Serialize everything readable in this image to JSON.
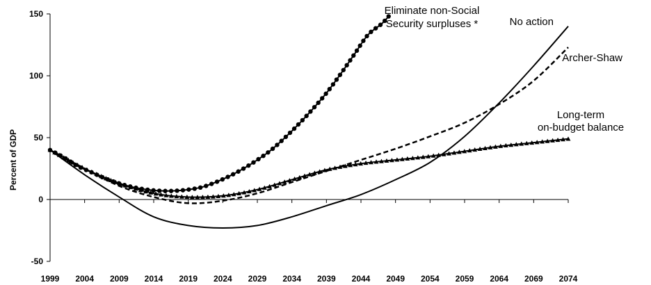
{
  "chart_data": {
    "type": "line",
    "title": "",
    "xlabel": "",
    "ylabel": "Percent of GDP",
    "xlim": [
      1999,
      2074
    ],
    "ylim": [
      -50,
      150
    ],
    "grid": false,
    "legend": "none",
    "x_ticks": [
      "1999",
      "2004",
      "2009",
      "2014",
      "2019",
      "2024",
      "2029",
      "2034",
      "2039",
      "2044",
      "2049",
      "2054",
      "2059",
      "2064",
      "2069",
      "2074"
    ],
    "y_ticks": [
      "-50",
      "0",
      "50",
      "100",
      "150"
    ],
    "annotations": {
      "eliminate_line1": "Eliminate non-Social",
      "eliminate_line2": "Security surpluses *",
      "no_action": "No action",
      "archer_shaw": "Archer-Shaw",
      "long_term_line1": "Long-term",
      "long_term_line2": "on-budget balance"
    },
    "series": [
      {
        "key": "eliminate",
        "style": "solid-circles",
        "color": "#000000",
        "x": [
          1999,
          2001,
          2003,
          2005,
          2007,
          2009,
          2011,
          2013,
          2015,
          2017,
          2019,
          2021,
          2023,
          2025,
          2027,
          2029,
          2031,
          2033,
          2035,
          2037,
          2039,
          2041,
          2043,
          2045,
          2047,
          2048
        ],
        "values": [
          40,
          34,
          27,
          22,
          17,
          13,
          10,
          8,
          7,
          7,
          8,
          10,
          14,
          19,
          25,
          32,
          40,
          50,
          61,
          73,
          86,
          101,
          117,
          133,
          142,
          148
        ]
      },
      {
        "key": "no_action",
        "style": "solid",
        "color": "#000000",
        "x": [
          1999,
          2004,
          2009,
          2014,
          2019,
          2024,
          2029,
          2034,
          2039,
          2044,
          2049,
          2054,
          2059,
          2064,
          2069,
          2074
        ],
        "values": [
          40,
          20,
          2,
          -14,
          -21,
          -23,
          -21,
          -14,
          -5,
          4,
          16,
          30,
          51,
          78,
          108,
          140
        ]
      },
      {
        "key": "archer_shaw",
        "style": "dashed",
        "color": "#000000",
        "x": [
          1999,
          2004,
          2009,
          2014,
          2019,
          2024,
          2029,
          2034,
          2039,
          2044,
          2049,
          2054,
          2059,
          2064,
          2069,
          2074
        ],
        "values": [
          40,
          25,
          11,
          2,
          -3,
          -1,
          5,
          14,
          23,
          32,
          41,
          51,
          62,
          77,
          96,
          123
        ]
      },
      {
        "key": "long_term",
        "style": "solid-triangles",
        "color": "#000000",
        "x": [
          1999,
          2004,
          2009,
          2014,
          2019,
          2024,
          2029,
          2034,
          2039,
          2044,
          2049,
          2054,
          2059,
          2064,
          2069,
          2074
        ],
        "values": [
          40,
          25,
          13,
          5,
          2,
          3,
          8,
          16,
          24,
          29,
          32,
          35,
          39,
          43,
          46,
          49
        ]
      }
    ]
  }
}
